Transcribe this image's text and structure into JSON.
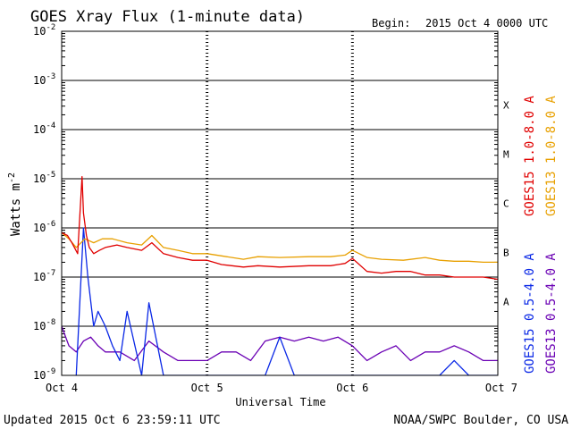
{
  "chart_data": {
    "type": "line",
    "title": "GOES Xray Flux (1-minute data)",
    "begin_label": "Begin:",
    "begin_value": "2015 Oct 4 0000 UTC",
    "ylabel": "Watts m",
    "ylabel_exp": "-2",
    "xlabel": "Universal Time",
    "scale": "log",
    "grid": true,
    "ylim_exp": [
      -9,
      -2
    ],
    "y_ticks": [
      {
        "base": "10",
        "exp": "-9",
        "e": -9
      },
      {
        "base": "10",
        "exp": "-8",
        "e": -8
      },
      {
        "base": "10",
        "exp": "-7",
        "e": -7
      },
      {
        "base": "10",
        "exp": "-6",
        "e": -6
      },
      {
        "base": "10",
        "exp": "-5",
        "e": -5
      },
      {
        "base": "10",
        "exp": "-4",
        "e": -4
      },
      {
        "base": "10",
        "exp": "-3",
        "e": -3
      },
      {
        "base": "10",
        "exp": "-2",
        "e": -2
      }
    ],
    "x_days": [
      "Oct 4",
      "Oct 5",
      "Oct 6",
      "Oct 7"
    ],
    "xlim_days": [
      0,
      3
    ],
    "flare_classes": [
      {
        "label": "A",
        "e": -7.5
      },
      {
        "label": "B",
        "e": -6.5
      },
      {
        "label": "C",
        "e": -5.5
      },
      {
        "label": "M",
        "e": -4.5
      },
      {
        "label": "X",
        "e": -3.5
      }
    ],
    "legend": [
      {
        "label": "GOES15 1.0-8.0 A",
        "color": "#e00000"
      },
      {
        "label": "GOES13 1.0-8.0 A",
        "color": "#e8a000"
      },
      {
        "label": "GOES15 0.5-4.0 A",
        "color": "#0a28e6"
      },
      {
        "label": "GOES13 0.5-4.0 A",
        "color": "#6a00b4"
      }
    ],
    "series": [
      {
        "name": "GOES15 1.0-8.0 A",
        "color": "#e00000",
        "x_days": [
          0.0,
          0.04,
          0.07,
          0.11,
          0.14,
          0.15,
          0.17,
          0.19,
          0.22,
          0.26,
          0.3,
          0.38,
          0.45,
          0.55,
          0.62,
          0.7,
          0.8,
          0.9,
          1.0,
          1.1,
          1.25,
          1.35,
          1.5,
          1.7,
          1.85,
          1.95,
          2.0,
          2.1,
          2.2,
          2.3,
          2.4,
          2.5,
          2.6,
          2.7,
          2.8,
          2.9,
          3.0
        ],
        "values": [
          8e-07,
          7e-07,
          5e-07,
          3e-07,
          1.1e-05,
          2e-06,
          7e-07,
          4e-07,
          3e-07,
          3.5e-07,
          4e-07,
          4.5e-07,
          4e-07,
          3.5e-07,
          5e-07,
          3e-07,
          2.5e-07,
          2.2e-07,
          2.2e-07,
          1.8e-07,
          1.6e-07,
          1.7e-07,
          1.6e-07,
          1.7e-07,
          1.7e-07,
          1.9e-07,
          2.4e-07,
          1.3e-07,
          1.2e-07,
          1.3e-07,
          1.3e-07,
          1.1e-07,
          1.1e-07,
          1e-07,
          1e-07,
          1e-07,
          9e-08
        ]
      },
      {
        "name": "GOES13 1.0-8.0 A",
        "color": "#e8a000",
        "x_days": [
          0.0,
          0.05,
          0.1,
          0.16,
          0.22,
          0.28,
          0.35,
          0.45,
          0.55,
          0.62,
          0.7,
          0.8,
          0.9,
          1.0,
          1.1,
          1.25,
          1.35,
          1.5,
          1.7,
          1.85,
          1.95,
          2.0,
          2.1,
          2.2,
          2.35,
          2.5,
          2.6,
          2.7,
          2.8,
          2.9,
          3.0
        ],
        "values": [
          8e-07,
          6e-07,
          4e-07,
          6e-07,
          5e-07,
          6e-07,
          6e-07,
          5e-07,
          4.5e-07,
          7e-07,
          4e-07,
          3.5e-07,
          3e-07,
          3e-07,
          2.7e-07,
          2.3e-07,
          2.6e-07,
          2.5e-07,
          2.6e-07,
          2.6e-07,
          2.8e-07,
          3.5e-07,
          2.5e-07,
          2.3e-07,
          2.2e-07,
          2.5e-07,
          2.2e-07,
          2.1e-07,
          2.1e-07,
          2e-07,
          2e-07
        ]
      },
      {
        "name": "GOES15 0.5-4.0 A",
        "color": "#0a28e6",
        "x_days": [
          0.1,
          0.15,
          0.18,
          0.22,
          0.25,
          0.3,
          0.35,
          0.4,
          0.45,
          0.55,
          0.6,
          0.7,
          0.8,
          0.9,
          1.0,
          1.2,
          1.4,
          1.5,
          1.6,
          1.8,
          2.0,
          2.2,
          2.4,
          2.6,
          2.7,
          2.8,
          2.9,
          3.0
        ],
        "values": [
          1e-09,
          1e-06,
          1e-07,
          1e-08,
          2e-08,
          1e-08,
          4e-09,
          2e-09,
          2e-08,
          1e-09,
          3e-08,
          1e-09,
          1e-09,
          1e-09,
          1e-09,
          1e-09,
          1e-09,
          6e-09,
          1e-09,
          1e-09,
          1e-09,
          1e-09,
          1e-09,
          1e-09,
          2e-09,
          1e-09,
          1e-09,
          1e-09
        ]
      },
      {
        "name": "GOES13 0.5-4.0 A",
        "color": "#6a00b4",
        "x_days": [
          0.0,
          0.05,
          0.1,
          0.15,
          0.2,
          0.25,
          0.3,
          0.4,
          0.5,
          0.6,
          0.7,
          0.8,
          0.9,
          1.0,
          1.1,
          1.2,
          1.3,
          1.4,
          1.5,
          1.6,
          1.7,
          1.8,
          1.9,
          2.0,
          2.1,
          2.2,
          2.3,
          2.4,
          2.5,
          2.6,
          2.7,
          2.8,
          2.9,
          3.0
        ],
        "values": [
          1e-08,
          4e-09,
          3e-09,
          5e-09,
          6e-09,
          4e-09,
          3e-09,
          3e-09,
          2e-09,
          5e-09,
          3e-09,
          2e-09,
          2e-09,
          2e-09,
          3e-09,
          3e-09,
          2e-09,
          5e-09,
          6e-09,
          5e-09,
          6e-09,
          5e-09,
          6e-09,
          4e-09,
          2e-09,
          3e-09,
          4e-09,
          2e-09,
          3e-09,
          3e-09,
          4e-09,
          3e-09,
          2e-09,
          2e-09
        ]
      }
    ]
  },
  "footer": {
    "updated": "Updated 2015 Oct  6 23:59:11 UTC",
    "credit": "NOAA/SWPC Boulder, CO USA"
  }
}
